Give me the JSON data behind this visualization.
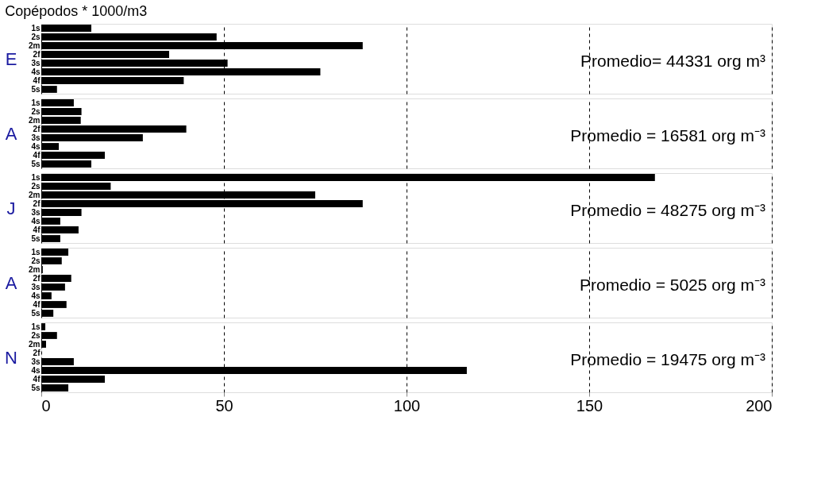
{
  "chart_data": [
    {
      "type": "bar",
      "orientation": "horizontal",
      "title": "Copépodos * 1000/m3",
      "ylabel": "E",
      "categories": [
        "1s",
        "2s",
        "2m",
        "2f",
        "3s",
        "4s",
        "4f",
        "5s"
      ],
      "values": [
        13.7,
        48,
        88,
        35,
        51,
        76.4,
        39,
        4.3
      ],
      "color": "#000000",
      "xlim": [
        0,
        200
      ],
      "xticks": [
        0,
        50,
        100,
        150,
        200
      ],
      "grid": "x",
      "tick_labels": "y",
      "annotations": [
        "Promedio= 44331 org m³"
      ]
    },
    {
      "type": "bar",
      "orientation": "horizontal",
      "ylabel": "A",
      "categories": [
        "1s",
        "2s",
        "2m",
        "2f",
        "3s",
        "4s",
        "4f",
        "5s"
      ],
      "values": [
        8.9,
        11,
        10.8,
        39.7,
        27.8,
        4.8,
        17.4,
        13.7
      ],
      "color": "#000000",
      "xlim": [
        0,
        200
      ],
      "xticks": [
        0,
        50,
        100,
        150,
        200
      ],
      "grid": "x",
      "tick_labels": "y",
      "annotations": [
        "Promedio = 16581 org m⁻³"
      ]
    },
    {
      "type": "bar",
      "orientation": "horizontal",
      "ylabel": "J",
      "categories": [
        "1s",
        "2s",
        "2m",
        "2f",
        "3s",
        "4s",
        "4f",
        "5s"
      ],
      "values": [
        168,
        19,
        75,
        88,
        11,
        5.2,
        10.2,
        5.2
      ],
      "color": "#000000",
      "xlim": [
        0,
        200
      ],
      "xticks": [
        0,
        50,
        100,
        150,
        200
      ],
      "grid": "x",
      "tick_labels": "y",
      "annotations": [
        "Promedio = 48275 org m⁻³"
      ]
    },
    {
      "type": "bar",
      "orientation": "horizontal",
      "ylabel": "A",
      "categories": [
        "1s",
        "2s",
        "2m",
        "2f",
        "3s",
        "4s",
        "4f",
        "5s"
      ],
      "values": [
        7.4,
        5.6,
        0.4,
        8.2,
        6.5,
        2.8,
        6.9,
        3.3
      ],
      "color": "#000000",
      "xlim": [
        0,
        200
      ],
      "xticks": [
        0,
        50,
        100,
        150,
        200
      ],
      "grid": "x",
      "tick_labels": "y",
      "annotations": [
        "Promedio = 5025 org m⁻³"
      ]
    },
    {
      "type": "bar",
      "orientation": "horizontal",
      "ylabel": "N",
      "categories": [
        "1s",
        "2s",
        "2m",
        "2f",
        "3s",
        "4s",
        "4f",
        "5s"
      ],
      "values": [
        1.1,
        4.3,
        1.3,
        0,
        8.9,
        116.5,
        17.4,
        7.4
      ],
      "color": "#000000",
      "xlim": [
        0,
        200
      ],
      "xticks": [
        0,
        50,
        100,
        150,
        200
      ],
      "grid": "x",
      "annotations": [
        "Promedio = 19475 org m⁻³"
      ]
    }
  ]
}
